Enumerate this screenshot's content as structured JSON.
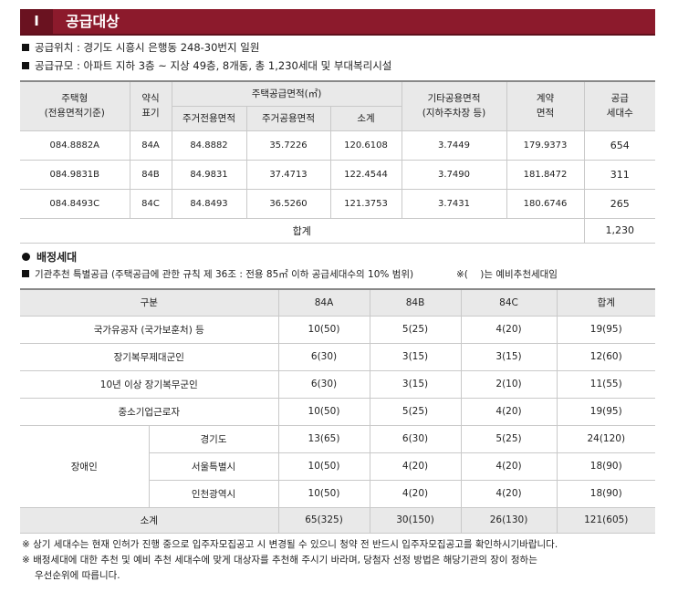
{
  "header": {
    "number": "I",
    "title": "공급대상"
  },
  "info": [
    "공급위치 : 경기도 시흥시 은행동 248-30번지 일원",
    "공급규모 : 아파트 지하 3층 ~ 지상 49층, 8개동, 총 1,230세대 및 부대복리시설"
  ],
  "table1": {
    "head1": [
      [
        "주택형",
        "(전용면적기준)"
      ],
      [
        "약식",
        "표기"
      ],
      [
        "주택공급면적(㎡)"
      ],
      [
        "기타공용면적",
        "(지하주차장 등)"
      ],
      [
        "계약",
        "면적"
      ],
      [
        "공급",
        "세대수"
      ]
    ],
    "head2": [
      "주거전용면적",
      "주거공용면적",
      "소계"
    ],
    "rows": [
      [
        "084.8882A",
        "84A",
        "84.8882",
        "35.7226",
        "120.6108",
        "3.7449",
        "179.9373",
        "654"
      ],
      [
        "084.9831B",
        "84B",
        "84.9831",
        "37.4713",
        "122.4544",
        "3.7490",
        "181.8472",
        "311"
      ],
      [
        "084.8493C",
        "84C",
        "84.8493",
        "36.5260",
        "121.3753",
        "3.7431",
        "180.6746",
        "265"
      ]
    ],
    "total": {
      "label": "합계",
      "value": "1,230"
    }
  },
  "section": {
    "title": "배정세대",
    "subtitle": "기관추천 특별공급 (주택공급에 관한 규칙 제 36조 : 전용 85㎡ 이하 공급세대수의 10% 범위)",
    "note": "※(    )는 예비추천세대임"
  },
  "table2": {
    "headers": [
      "구분",
      "84A",
      "84B",
      "84C",
      "합계"
    ],
    "rows": [
      {
        "label": "국가유공자 (국가보훈처) 등",
        "cells": [
          "10(50)",
          "5(25)",
          "4(20)",
          "19(95)"
        ]
      },
      {
        "label": "장기복무제대군인",
        "cells": [
          "6(30)",
          "3(15)",
          "3(15)",
          "12(60)"
        ]
      },
      {
        "label": "10년 이상 장기복무군인",
        "cells": [
          "6(30)",
          "3(15)",
          "2(10)",
          "11(55)"
        ]
      },
      {
        "label": "중소기업근로자",
        "cells": [
          "10(50)",
          "5(25)",
          "4(20)",
          "19(95)"
        ]
      }
    ],
    "group": {
      "label": "장애인",
      "rows": [
        {
          "label": "경기도",
          "cells": [
            "13(65)",
            "6(30)",
            "5(25)",
            "24(120)"
          ]
        },
        {
          "label": "서울특별시",
          "cells": [
            "10(50)",
            "4(20)",
            "4(20)",
            "18(90)"
          ]
        },
        {
          "label": "인천광역시",
          "cells": [
            "10(50)",
            "4(20)",
            "4(20)",
            "18(90)"
          ]
        }
      ]
    },
    "subtotal": {
      "label": "소계",
      "cells": [
        "65(325)",
        "30(150)",
        "26(130)",
        "121(605)"
      ]
    }
  },
  "notes": [
    "※ 상기 세대수는 현재 인허가 진행 중으로 입주자모집공고 시 변경될 수 있으니 청약 전 반드시 입주자모집공고를 확인하시기바랍니다.",
    "※ 배정세대에 대한 추천 및 예비 추천 세대수에 맞게 대상자를 추천해 주시기 바라며, 당첨자 선정 방법은 해당기관의 장이 정하는",
    "우선순위에 따릅니다."
  ]
}
